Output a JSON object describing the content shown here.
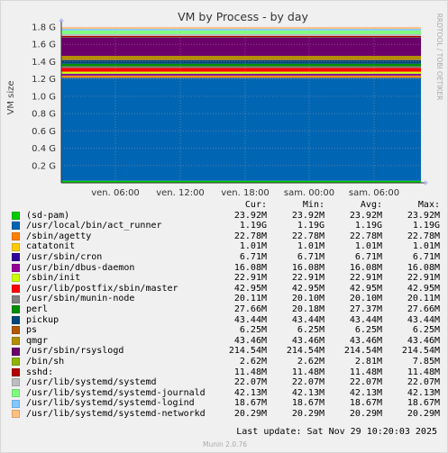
{
  "chart_data": {
    "type": "area",
    "stacked": true,
    "title": "VM by Process - by day",
    "ylabel": "VM size",
    "side_label": "RRDTOOL / TOBI OETIKER",
    "ylim": [
      0,
      1.8
    ],
    "y_unit": "G",
    "yticks": [
      "0.2 G",
      "0.4 G",
      "0.6 G",
      "0.8 G",
      "1.0 G",
      "1.2 G",
      "1.4 G",
      "1.6 G",
      "1.8 G"
    ],
    "xticks": [
      "ven. 06:00",
      "ven. 12:00",
      "ven. 18:00",
      "sam. 00:00",
      "sam. 06:00"
    ],
    "grid": true,
    "columns": [
      "Cur:",
      "Min:",
      "Avg:",
      "Max:"
    ],
    "series": [
      {
        "name": "(sd-pam)",
        "color": "#00cc00",
        "cur": "23.92M",
        "min": "23.92M",
        "avg": "23.92M",
        "max": "23.92M",
        "value_g": 0.024
      },
      {
        "name": "/usr/local/bin/act_runner",
        "color": "#0066b3",
        "cur": "1.19G",
        "min": "1.19G",
        "avg": "1.19G",
        "max": "1.19G",
        "value_g": 1.19
      },
      {
        "name": "/sbin/agetty",
        "color": "#ff8000",
        "cur": "22.78M",
        "min": "22.78M",
        "avg": "22.78M",
        "max": "22.78M",
        "value_g": 0.023
      },
      {
        "name": "catatonit",
        "color": "#ffcc00",
        "cur": "1.01M",
        "min": "1.01M",
        "avg": "1.01M",
        "max": "1.01M",
        "value_g": 0.001
      },
      {
        "name": "/usr/sbin/cron",
        "color": "#330099",
        "cur": "6.71M",
        "min": "6.71M",
        "avg": "6.71M",
        "max": "6.71M",
        "value_g": 0.007
      },
      {
        "name": "/usr/bin/dbus-daemon",
        "color": "#990099",
        "cur": "16.08M",
        "min": "16.08M",
        "avg": "16.08M",
        "max": "16.08M",
        "value_g": 0.016
      },
      {
        "name": "/sbin/init",
        "color": "#ccff00",
        "cur": "22.91M",
        "min": "22.91M",
        "avg": "22.91M",
        "max": "22.91M",
        "value_g": 0.023
      },
      {
        "name": "/usr/lib/postfix/sbin/master",
        "color": "#ff0000",
        "cur": "42.95M",
        "min": "42.95M",
        "avg": "42.95M",
        "max": "42.95M",
        "value_g": 0.043
      },
      {
        "name": "/usr/sbin/munin-node",
        "color": "#808080",
        "cur": "20.11M",
        "min": "20.10M",
        "avg": "20.10M",
        "max": "20.11M",
        "value_g": 0.02
      },
      {
        "name": "perl",
        "color": "#008f00",
        "cur": "27.66M",
        "min": "20.18M",
        "avg": "27.37M",
        "max": "27.66M",
        "value_g": 0.028
      },
      {
        "name": "pickup",
        "color": "#00487d",
        "cur": "43.44M",
        "min": "43.44M",
        "avg": "43.44M",
        "max": "43.44M",
        "value_g": 0.043
      },
      {
        "name": "ps",
        "color": "#b35a00",
        "cur": "6.25M",
        "min": "6.25M",
        "avg": "6.25M",
        "max": "6.25M",
        "value_g": 0.006
      },
      {
        "name": "qmgr",
        "color": "#b38f00",
        "cur": "43.46M",
        "min": "43.46M",
        "avg": "43.46M",
        "max": "43.46M",
        "value_g": 0.043
      },
      {
        "name": "/usr/sbin/rsyslogd",
        "color": "#6b006b",
        "cur": "214.54M",
        "min": "214.54M",
        "avg": "214.54M",
        "max": "214.54M",
        "value_g": 0.215
      },
      {
        "name": "/bin/sh",
        "color": "#8fb300",
        "cur": "2.62M",
        "min": "2.62M",
        "avg": "2.81M",
        "max": "7.85M",
        "value_g": 0.003
      },
      {
        "name": "sshd:",
        "color": "#b30000",
        "cur": "11.48M",
        "min": "11.48M",
        "avg": "11.48M",
        "max": "11.48M",
        "value_g": 0.011
      },
      {
        "name": "/usr/lib/systemd/systemd",
        "color": "#bebebe",
        "cur": "22.07M",
        "min": "22.07M",
        "avg": "22.07M",
        "max": "22.07M",
        "value_g": 0.022
      },
      {
        "name": "/usr/lib/systemd/systemd-journald",
        "color": "#80ff80",
        "cur": "42.13M",
        "min": "42.13M",
        "avg": "42.13M",
        "max": "42.13M",
        "value_g": 0.042
      },
      {
        "name": "/usr/lib/systemd/systemd-logind",
        "color": "#80c9ff",
        "cur": "18.67M",
        "min": "18.67M",
        "avg": "18.67M",
        "max": "18.67M",
        "value_g": 0.019
      },
      {
        "name": "/usr/lib/systemd/systemd-networkd",
        "color": "#ffc080",
        "cur": "20.29M",
        "min": "20.29M",
        "avg": "20.29M",
        "max": "20.29M",
        "value_g": 0.02
      }
    ]
  },
  "footer": {
    "last_update": "Last update: Sat Nov 29 10:20:03 2025",
    "version": "Munin 2.0.76"
  }
}
